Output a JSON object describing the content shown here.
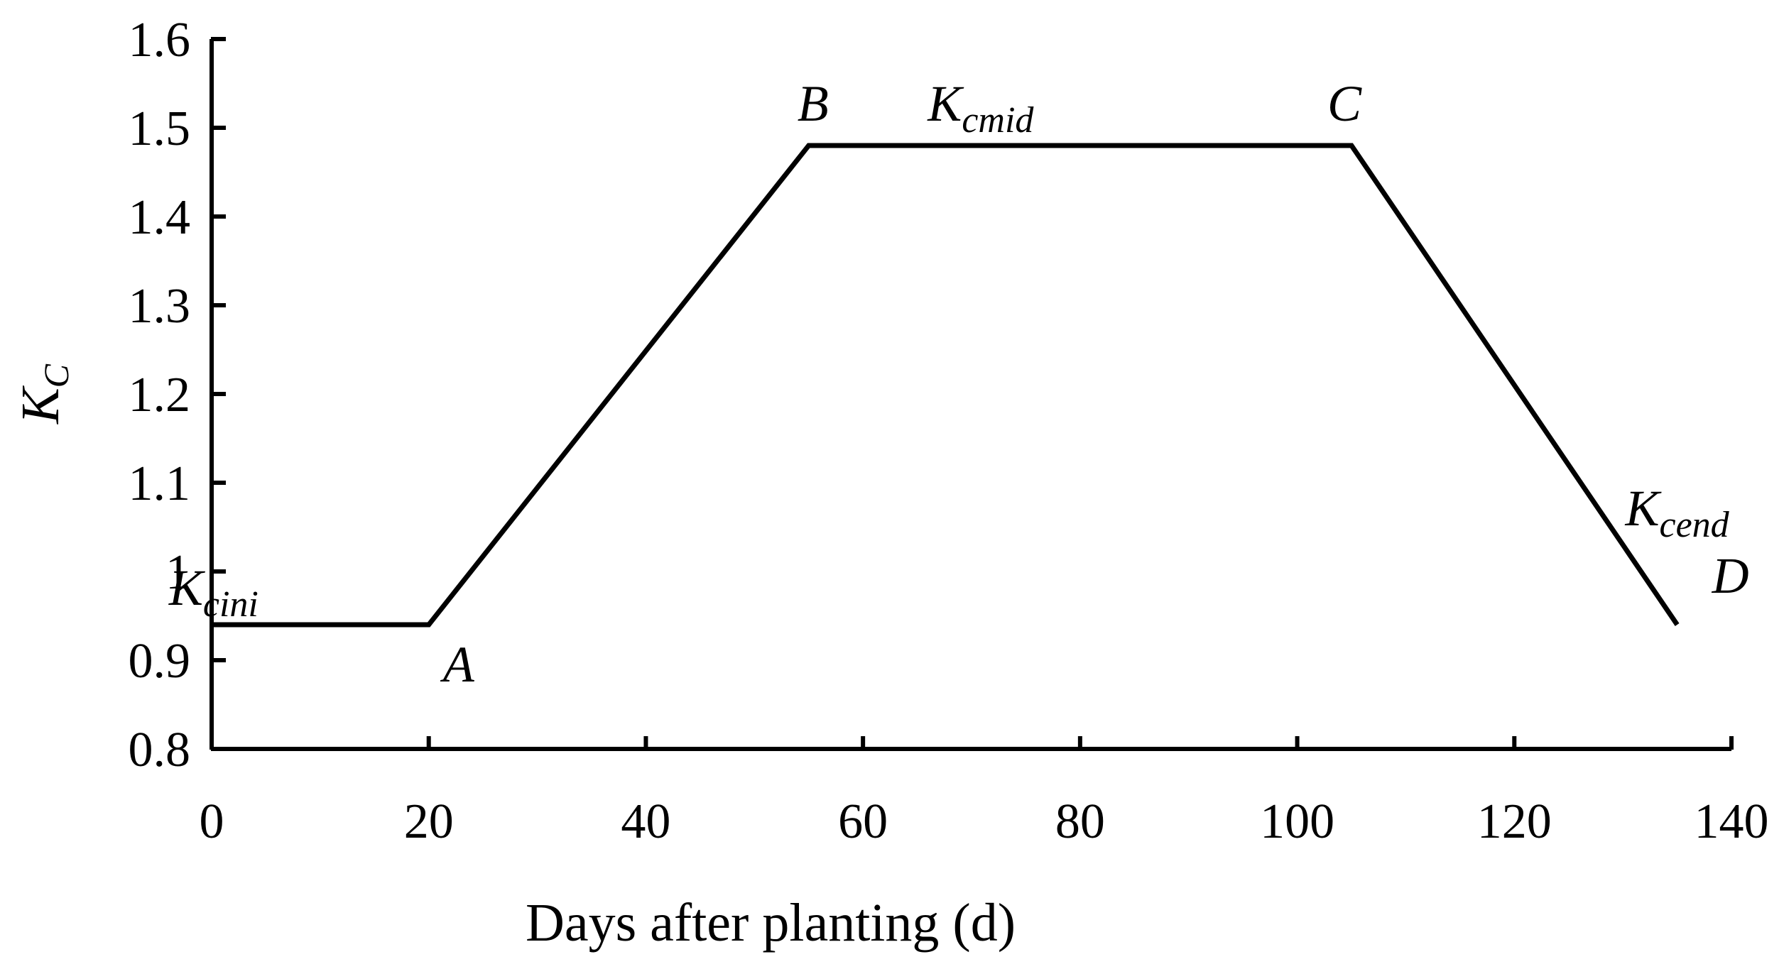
{
  "chart_data": {
    "type": "line",
    "title": "",
    "xlabel": "Days after planting (d)",
    "ylabel": {
      "main": "K",
      "sub": "C"
    },
    "xlim": [
      0,
      140
    ],
    "ylim": [
      0.8,
      1.6
    ],
    "x_ticks": [
      0,
      20,
      40,
      60,
      80,
      100,
      120,
      140
    ],
    "x_tick_labels": [
      "0",
      "20",
      "40",
      "60",
      "80",
      "100",
      "120",
      "140"
    ],
    "y_ticks": [
      0.8,
      0.9,
      1.0,
      1.1,
      1.2,
      1.3,
      1.4,
      1.5,
      1.6
    ],
    "y_tick_labels": [
      "0.8",
      "0.9",
      "1",
      "1.1",
      "1.2",
      "1.3",
      "1.4",
      "1.5",
      "1.6"
    ],
    "grid": false,
    "series": [
      {
        "color": "#000000",
        "points": [
          {
            "x": 0,
            "y": 0.94
          },
          {
            "x": 20,
            "y": 0.94
          },
          {
            "x": 55,
            "y": 1.48
          },
          {
            "x": 105,
            "y": 1.48
          },
          {
            "x": 135,
            "y": 0.94
          }
        ]
      }
    ],
    "annotations": [
      {
        "main": "K",
        "sub": "cini",
        "x": 10,
        "y": 0.94
      },
      {
        "main": "A",
        "sub": "",
        "x": 20,
        "y": 0.94
      },
      {
        "main": "B",
        "sub": "",
        "x": 55,
        "y": 1.48
      },
      {
        "main": "K",
        "sub": "cmid",
        "x": 80,
        "y": 1.48
      },
      {
        "main": "C",
        "sub": "",
        "x": 105,
        "y": 1.48
      },
      {
        "main": "K",
        "sub": "cend",
        "x": 135,
        "y": 0.94
      },
      {
        "main": "D",
        "sub": "",
        "x": 135,
        "y": 0.94
      }
    ]
  }
}
